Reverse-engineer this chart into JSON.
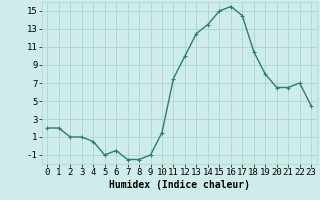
{
  "x": [
    0,
    1,
    2,
    3,
    4,
    5,
    6,
    7,
    8,
    9,
    10,
    11,
    12,
    13,
    14,
    15,
    16,
    17,
    18,
    19,
    20,
    21,
    22,
    23
  ],
  "y": [
    2,
    2,
    1,
    1,
    0.5,
    -1,
    -0.5,
    -1.5,
    -1.5,
    -1,
    1.5,
    7.5,
    10,
    12.5,
    13.5,
    15,
    15.5,
    14.5,
    10.5,
    8,
    6.5,
    6.5,
    7,
    4.5
  ],
  "line_color": "#2e7d6e",
  "marker": "+",
  "marker_size": 3,
  "linewidth": 1.0,
  "xlabel": "Humidex (Indice chaleur)",
  "xlim": [
    -0.5,
    23.5
  ],
  "ylim": [
    -2,
    16
  ],
  "yticks": [
    -1,
    1,
    3,
    5,
    7,
    9,
    11,
    13,
    15
  ],
  "bg_color": "#ceecea",
  "grid_color": "#aed4d0",
  "xlabel_fontsize": 7,
  "tick_fontsize": 6.5
}
